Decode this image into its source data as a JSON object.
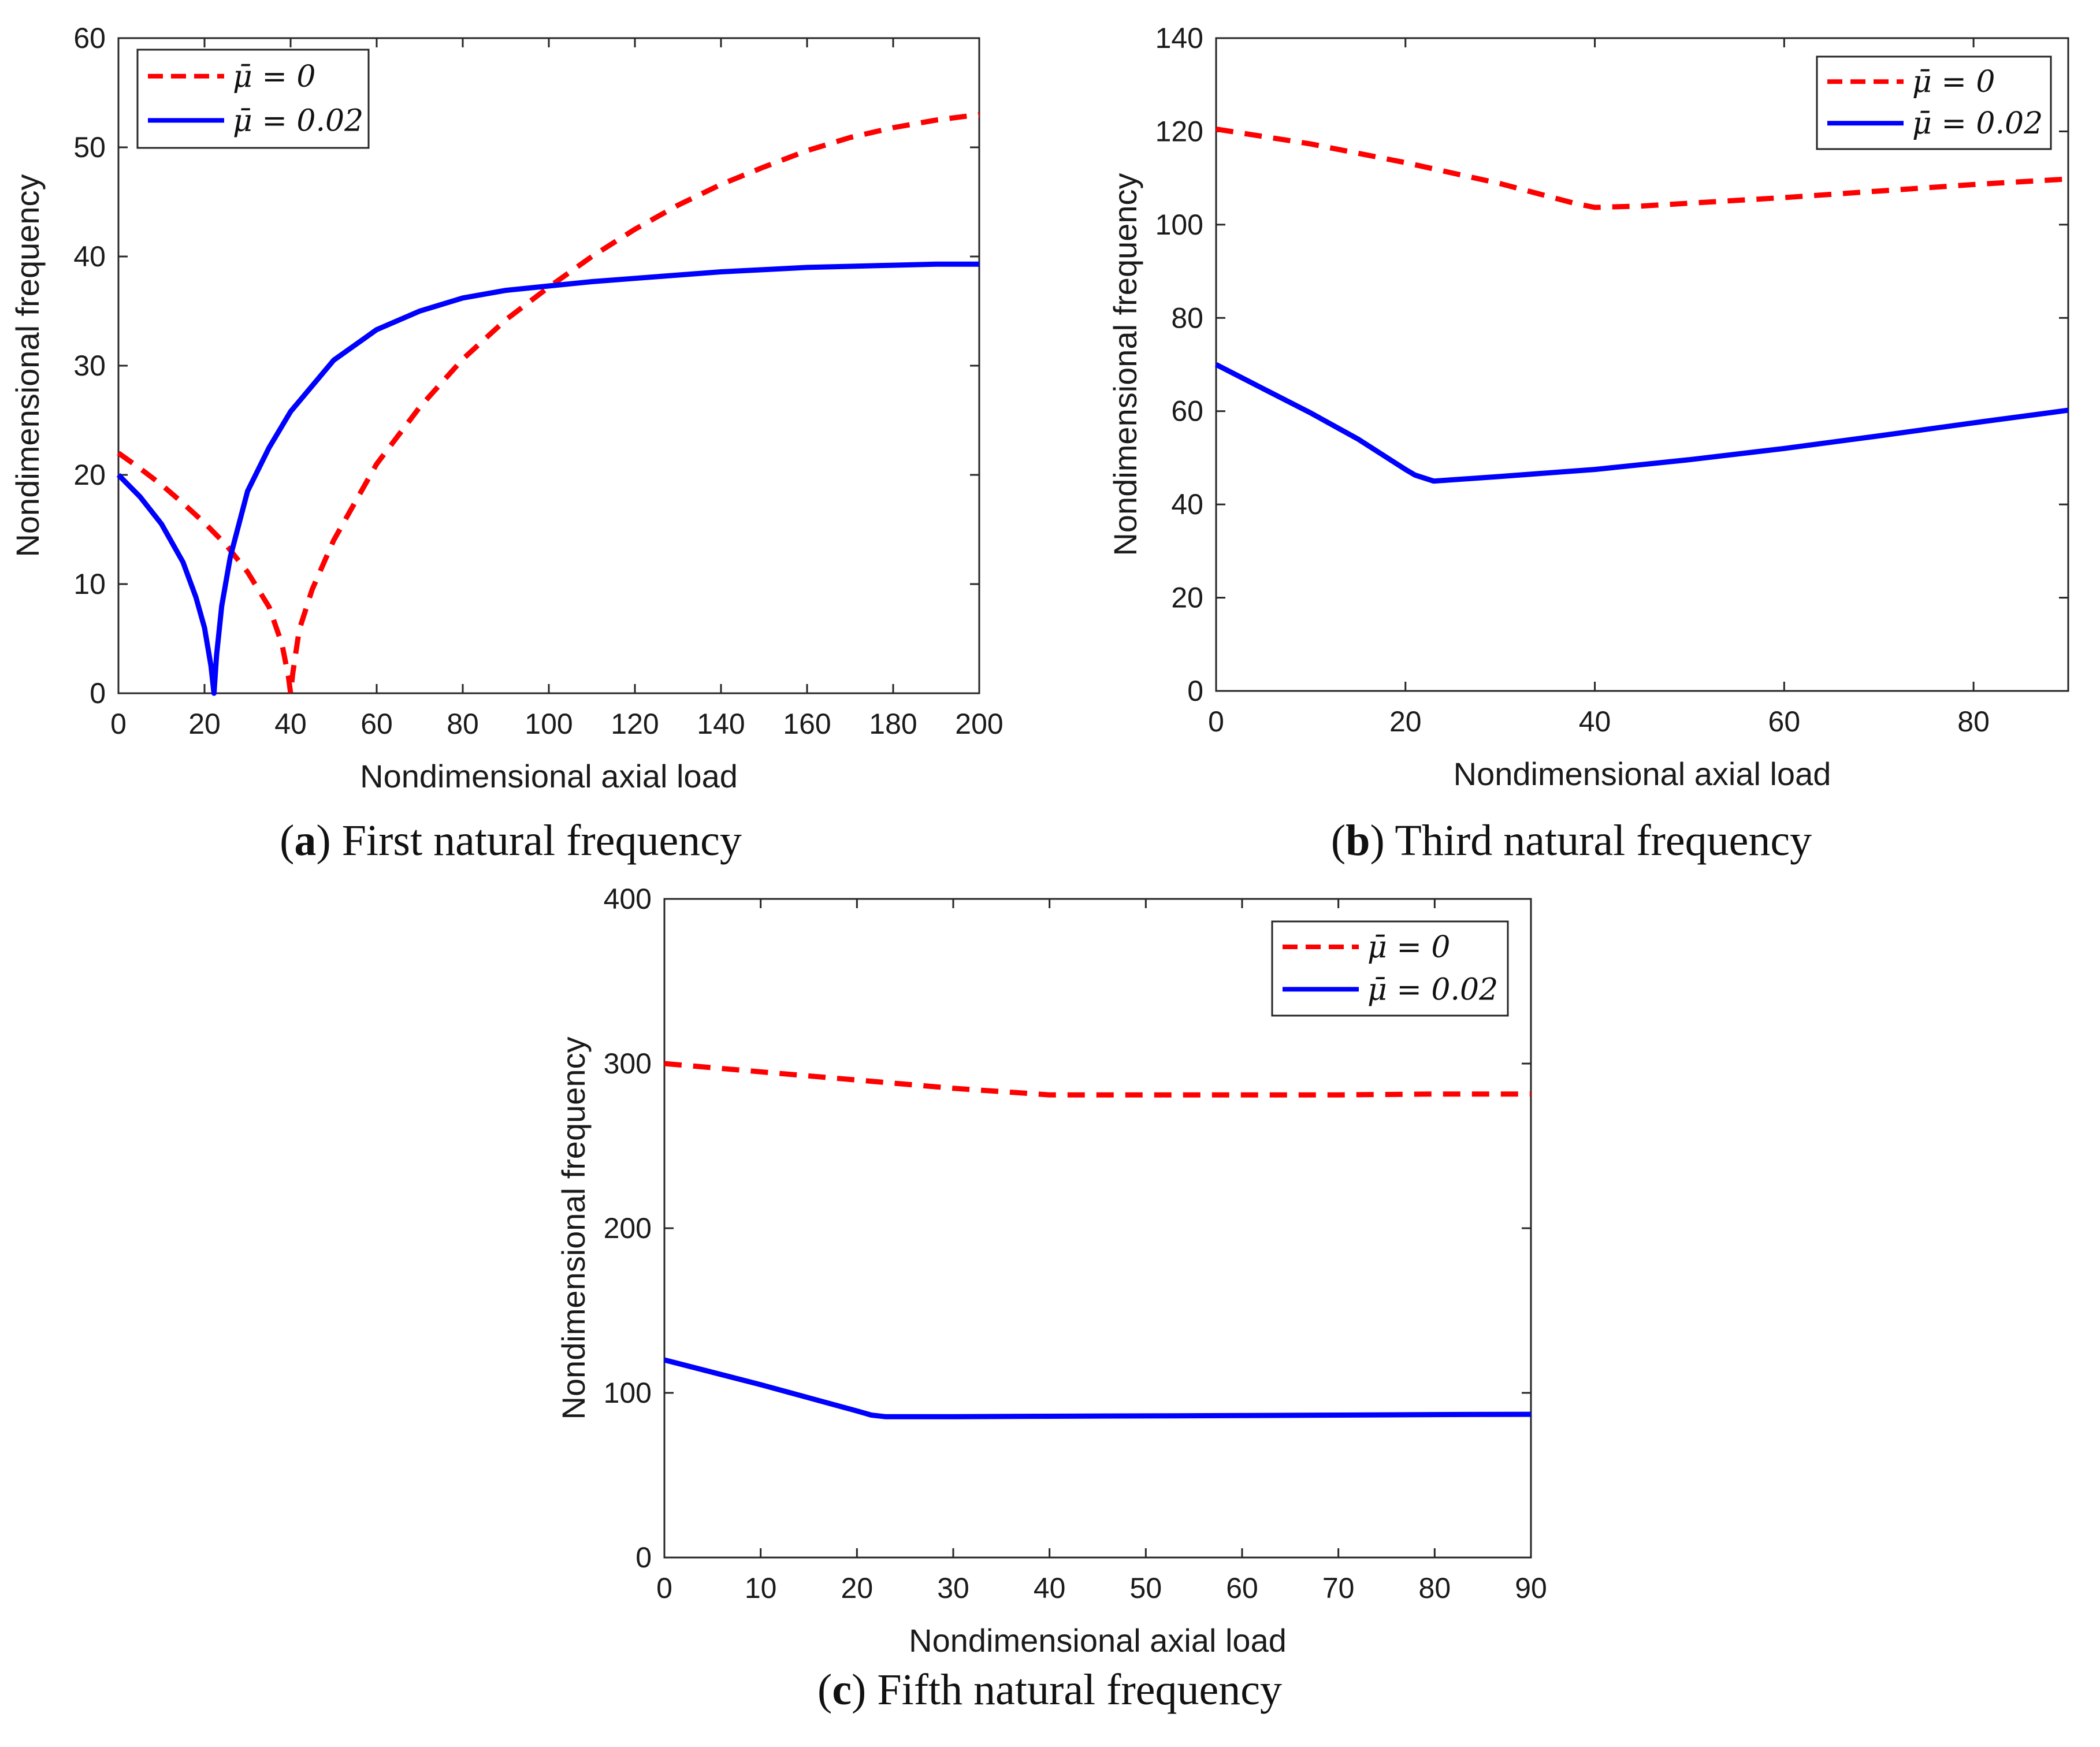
{
  "colors": {
    "series_red": "#ff0000",
    "series_blue": "#0000ff",
    "axis": "#262626"
  },
  "chart_data": [
    {
      "id": "a",
      "type": "line",
      "caption_label": "a",
      "caption_text": "First natural frequency",
      "xlabel": "Nondimensional axial load",
      "ylabel": "Nondimensional  frequency",
      "xlim": [
        0,
        200
      ],
      "ylim": [
        0,
        60
      ],
      "xticks": [
        0,
        20,
        40,
        60,
        80,
        100,
        120,
        140,
        160,
        180,
        200
      ],
      "yticks": [
        0,
        10,
        20,
        30,
        40,
        50,
        60
      ],
      "legend_position": "top-left",
      "series": [
        {
          "name": "μ̄ = 0",
          "style": "dashed",
          "color": "#ff0000",
          "points": [
            [
              0,
              22.0
            ],
            [
              5,
              20.6
            ],
            [
              10,
              19.1
            ],
            [
              15,
              17.4
            ],
            [
              20,
              15.6
            ],
            [
              25,
              13.6
            ],
            [
              30,
              11.1
            ],
            [
              35,
              7.9
            ],
            [
              38,
              4.5
            ],
            [
              39.5,
              1.5
            ],
            [
              40,
              0
            ],
            [
              40.5,
              1.8
            ],
            [
              42,
              5.8
            ],
            [
              45,
              9.5
            ],
            [
              50,
              14.0
            ],
            [
              60,
              21.0
            ],
            [
              70,
              26.2
            ],
            [
              80,
              30.6
            ],
            [
              90,
              34.2
            ],
            [
              100,
              37.2
            ],
            [
              110,
              40.0
            ],
            [
              120,
              42.5
            ],
            [
              130,
              44.7
            ],
            [
              140,
              46.6
            ],
            [
              150,
              48.2
            ],
            [
              160,
              49.7
            ],
            [
              170,
              50.9
            ],
            [
              180,
              51.8
            ],
            [
              190,
              52.5
            ],
            [
              200,
              53.0
            ]
          ]
        },
        {
          "name": "μ̄ = 0.02",
          "style": "solid",
          "color": "#0000ff",
          "points": [
            [
              0,
              20.0
            ],
            [
              5,
              18.0
            ],
            [
              10,
              15.5
            ],
            [
              15,
              12.0
            ],
            [
              18,
              8.8
            ],
            [
              20,
              6.0
            ],
            [
              21.5,
              2.5
            ],
            [
              22.2,
              0
            ],
            [
              22.8,
              3.5
            ],
            [
              24,
              8.0
            ],
            [
              26,
              12.5
            ],
            [
              30,
              18.5
            ],
            [
              35,
              22.5
            ],
            [
              40,
              25.8
            ],
            [
              50,
              30.5
            ],
            [
              60,
              33.3
            ],
            [
              70,
              35.0
            ],
            [
              80,
              36.2
            ],
            [
              90,
              36.9
            ],
            [
              100,
              37.3
            ],
            [
              110,
              37.7
            ],
            [
              120,
              38.0
            ],
            [
              130,
              38.3
            ],
            [
              140,
              38.6
            ],
            [
              150,
              38.8
            ],
            [
              160,
              39.0
            ],
            [
              170,
              39.1
            ],
            [
              180,
              39.2
            ],
            [
              190,
              39.3
            ],
            [
              200,
              39.3
            ]
          ]
        }
      ]
    },
    {
      "id": "b",
      "type": "line",
      "caption_label": "b",
      "caption_text": "Third natural frequency",
      "xlabel": "Nondimensional axial load",
      "ylabel": "Nondimensional  frequency",
      "xlim": [
        0,
        90
      ],
      "ylim": [
        0,
        140
      ],
      "xticks": [
        0,
        20,
        40,
        60,
        80
      ],
      "yticks": [
        0,
        20,
        40,
        60,
        80,
        100,
        120,
        140
      ],
      "legend_position": "top-right",
      "series": [
        {
          "name": "μ̄ = 0",
          "style": "dashed",
          "color": "#ff0000",
          "points": [
            [
              0,
              120.5
            ],
            [
              10,
              117.3
            ],
            [
              20,
              113.3
            ],
            [
              30,
              108.8
            ],
            [
              38,
              104.5
            ],
            [
              40,
              103.7
            ],
            [
              45,
              104.0
            ],
            [
              50,
              104.6
            ],
            [
              60,
              105.8
            ],
            [
              70,
              107.2
            ],
            [
              80,
              108.6
            ],
            [
              90,
              109.8
            ]
          ]
        },
        {
          "name": "μ̄ = 0.02",
          "style": "solid",
          "color": "#0000ff",
          "points": [
            [
              0,
              70.0
            ],
            [
              5,
              64.8
            ],
            [
              10,
              59.6
            ],
            [
              15,
              54.0
            ],
            [
              20,
              47.5
            ],
            [
              21,
              46.3
            ],
            [
              23,
              45.0
            ],
            [
              30,
              46.0
            ],
            [
              40,
              47.5
            ],
            [
              50,
              49.6
            ],
            [
              60,
              52.0
            ],
            [
              70,
              54.7
            ],
            [
              80,
              57.5
            ],
            [
              90,
              60.2
            ]
          ]
        }
      ]
    },
    {
      "id": "c",
      "type": "line",
      "caption_label": "c",
      "caption_text": "Fifth natural frequency",
      "xlabel": "Nondimensional axial load",
      "ylabel": "Nondimensional  frequency",
      "xlim": [
        0,
        90
      ],
      "ylim": [
        0,
        400
      ],
      "xticks": [
        0,
        10,
        20,
        30,
        40,
        50,
        60,
        70,
        80,
        90
      ],
      "yticks": [
        0,
        100,
        200,
        300,
        400
      ],
      "legend_position": "top-right",
      "series": [
        {
          "name": "μ̄ = 0",
          "style": "dashed",
          "color": "#ff0000",
          "points": [
            [
              0,
              300.0
            ],
            [
              10,
              295.0
            ],
            [
              20,
              290.0
            ],
            [
              30,
              285.0
            ],
            [
              40,
              281.0
            ],
            [
              50,
              281.0
            ],
            [
              60,
              281.0
            ],
            [
              70,
              281.0
            ],
            [
              80,
              281.5
            ],
            [
              90,
              281.5
            ]
          ]
        },
        {
          "name": "μ̄ = 0.02",
          "style": "solid",
          "color": "#0000ff",
          "points": [
            [
              0,
              120.0
            ],
            [
              10,
              105.0
            ],
            [
              20,
              89.0
            ],
            [
              21.5,
              86.5
            ],
            [
              23,
              85.5
            ],
            [
              30,
              85.5
            ],
            [
              40,
              85.8
            ],
            [
              50,
              86.0
            ],
            [
              60,
              86.2
            ],
            [
              70,
              86.5
            ],
            [
              80,
              86.8
            ],
            [
              90,
              87.0
            ]
          ]
        }
      ]
    }
  ]
}
